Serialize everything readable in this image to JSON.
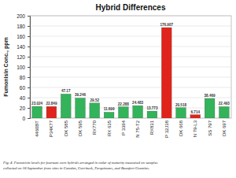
{
  "chart_data": {
    "type": "bar",
    "title": "Hybrid Differences",
    "y_label": "Fumonisin Conc., ppm",
    "categories": [
      "4460BT",
      "P34K77",
      "DK 585",
      "DK 595",
      "RX770",
      "RX 635",
      "P 3394",
      "N 75-T2",
      "RX831",
      "P 32J38",
      "DK 668",
      "N 79-L3",
      "SS 797",
      "DK 697"
    ],
    "values": [
      23.024,
      22.849,
      47.17,
      39.246,
      29.52,
      11.699,
      22.288,
      24.483,
      13.773,
      176.907,
      20.518,
      6.714,
      38.469,
      22.493
    ],
    "colors": [
      "#33b35a",
      "#e0241b",
      "#33b35a",
      "#33b35a",
      "#33b35a",
      "#33b35a",
      "#33b35a",
      "#33b35a",
      "#33b35a",
      "#e0241b",
      "#33b35a",
      "#e0241b",
      "#33b35a",
      "#33b35a"
    ],
    "ylim": [
      0,
      200
    ],
    "yticks": [
      0,
      20,
      40,
      60,
      80,
      100,
      120,
      140,
      160,
      180,
      200
    ],
    "grid": true,
    "data_labels": true,
    "caption": [
      "Fig. 4.   Fumonisin levels for fourteen corn hybrids arranged in order of maturity measured on samples",
      "collected on 18 September from sites in Camden, Currituck, Perquimans, and Beaufort Counties."
    ]
  }
}
